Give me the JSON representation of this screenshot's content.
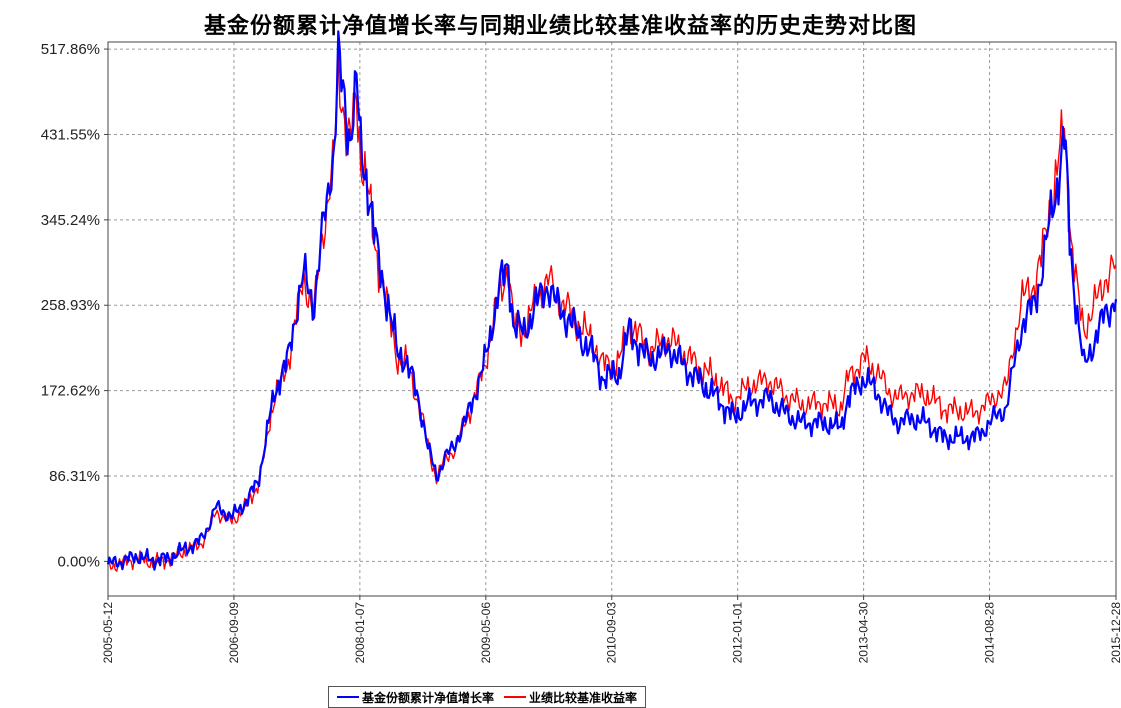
{
  "chart_data": {
    "type": "line",
    "title": "基金份额累计净值增长率与同期业绩比较基准收益率的历史走势对比图",
    "xlabel": "",
    "ylabel": "",
    "ylim": [
      -35,
      525
    ],
    "xlim": [
      "2005-05-12",
      "2015-12-28"
    ],
    "yticks": [
      "0.00%",
      "86.31%",
      "172.62%",
      "258.93%",
      "345.24%",
      "431.55%",
      "517.86%"
    ],
    "ytick_values": [
      0,
      86.31,
      172.62,
      258.93,
      345.24,
      431.55,
      517.86
    ],
    "xticks": [
      "2005-05-12",
      "2006-09-09",
      "2008-01-07",
      "2009-05-06",
      "2010-09-03",
      "2012-01-01",
      "2013-04-30",
      "2014-08-28",
      "2015-12-28"
    ],
    "grid": true,
    "legend_position": "bottom",
    "series": [
      {
        "name": "基金份额累计净值增长率",
        "color": "#0000ff",
        "x": [
          "2005-05-12",
          "2005-07-01",
          "2005-09-01",
          "2005-11-01",
          "2006-01-01",
          "2006-03-01",
          "2006-05-01",
          "2006-06-01",
          "2006-07-01",
          "2006-09-01",
          "2006-11-01",
          "2006-12-15",
          "2007-01-15",
          "2007-02-10",
          "2007-04-01",
          "2007-05-01",
          "2007-06-05",
          "2007-07-15",
          "2007-08-15",
          "2007-10-01",
          "2007-10-16",
          "2007-11-15",
          "2007-12-01",
          "2007-12-25",
          "2008-01-10",
          "2008-02-01",
          "2008-03-01",
          "2008-04-01",
          "2008-05-01",
          "2008-06-01",
          "2008-07-01",
          "2008-08-01",
          "2008-09-01",
          "2008-10-01",
          "2008-10-28",
          "2008-12-01",
          "2009-01-01",
          "2009-03-01",
          "2009-05-01",
          "2009-07-01",
          "2009-08-01",
          "2009-08-20",
          "2009-10-01",
          "2009-11-15",
          "2010-01-01",
          "2010-02-01",
          "2010-04-15",
          "2010-07-01",
          "2010-08-01",
          "2010-10-01",
          "2010-11-10",
          "2011-01-01",
          "2011-02-01",
          "2011-04-15",
          "2011-06-15",
          "2011-08-15",
          "2011-10-15",
          "2011-12-15",
          "2012-02-15",
          "2012-05-01",
          "2012-07-01",
          "2012-09-01",
          "2012-12-01",
          "2013-02-01",
          "2013-03-01",
          "2013-05-01",
          "2013-06-25",
          "2013-08-01",
          "2013-09-15",
          "2013-11-01",
          "2014-01-01",
          "2014-03-01",
          "2014-05-01",
          "2014-07-01",
          "2014-09-01",
          "2014-10-01",
          "2014-11-01",
          "2014-12-01",
          "2015-01-01",
          "2015-02-15",
          "2015-03-15",
          "2015-04-15",
          "2015-05-15",
          "2015-06-12",
          "2015-07-08",
          "2015-08-01",
          "2015-08-26",
          "2015-10-01",
          "2015-11-15",
          "2015-12-28"
        ],
        "values": [
          -3,
          0,
          5,
          1,
          3,
          12,
          20,
          35,
          55,
          45,
          62,
          85,
          130,
          170,
          200,
          245,
          290,
          260,
          330,
          420,
          505,
          450,
          430,
          480,
          420,
          390,
          330,
          290,
          250,
          210,
          205,
          180,
          150,
          110,
          85,
          105,
          115,
          150,
          200,
          280,
          300,
          240,
          230,
          260,
          280,
          260,
          235,
          205,
          185,
          190,
          235,
          210,
          205,
          215,
          195,
          180,
          165,
          145,
          160,
          165,
          150,
          140,
          140,
          135,
          165,
          185,
          170,
          150,
          140,
          145,
          140,
          125,
          125,
          125,
          140,
          150,
          155,
          200,
          240,
          260,
          290,
          340,
          380,
          430,
          310,
          250,
          195,
          220,
          250,
          265
        ]
      },
      {
        "name": "业绩比较基准收益率",
        "color": "#ff0000",
        "x": [
          "2005-05-12",
          "2005-07-01",
          "2005-09-01",
          "2005-11-01",
          "2006-01-01",
          "2006-03-01",
          "2006-05-01",
          "2006-06-01",
          "2006-07-01",
          "2006-09-01",
          "2006-11-01",
          "2006-12-15",
          "2007-01-15",
          "2007-02-10",
          "2007-04-01",
          "2007-05-01",
          "2007-06-05",
          "2007-07-15",
          "2007-08-15",
          "2007-10-01",
          "2007-10-16",
          "2007-11-15",
          "2007-12-01",
          "2007-12-25",
          "2008-01-10",
          "2008-02-01",
          "2008-03-01",
          "2008-04-01",
          "2008-05-01",
          "2008-06-01",
          "2008-07-01",
          "2008-08-01",
          "2008-09-01",
          "2008-10-01",
          "2008-10-28",
          "2008-12-01",
          "2009-01-01",
          "2009-03-01",
          "2009-05-01",
          "2009-07-01",
          "2009-08-01",
          "2009-08-20",
          "2009-10-01",
          "2009-11-15",
          "2010-01-01",
          "2010-02-01",
          "2010-04-15",
          "2010-07-01",
          "2010-08-01",
          "2010-10-01",
          "2010-11-10",
          "2011-01-01",
          "2011-02-01",
          "2011-04-15",
          "2011-06-15",
          "2011-08-15",
          "2011-10-15",
          "2011-12-15",
          "2012-02-15",
          "2012-05-01",
          "2012-07-01",
          "2012-09-01",
          "2012-12-01",
          "2013-02-01",
          "2013-03-01",
          "2013-05-01",
          "2013-06-25",
          "2013-08-01",
          "2013-09-15",
          "2013-11-01",
          "2014-01-01",
          "2014-03-01",
          "2014-05-01",
          "2014-07-01",
          "2014-09-01",
          "2014-10-01",
          "2014-11-01",
          "2014-12-01",
          "2015-01-01",
          "2015-02-15",
          "2015-03-15",
          "2015-04-15",
          "2015-05-15",
          "2015-06-12",
          "2015-07-08",
          "2015-08-01",
          "2015-08-26",
          "2015-10-01",
          "2015-11-15",
          "2015-12-28"
        ],
        "values": [
          -5,
          -2,
          3,
          -1,
          2,
          10,
          17,
          30,
          50,
          40,
          58,
          80,
          125,
          165,
          195,
          240,
          285,
          255,
          325,
          415,
          495,
          440,
          425,
          470,
          410,
          385,
          325,
          285,
          245,
          205,
          200,
          178,
          148,
          108,
          85,
          104,
          112,
          148,
          198,
          275,
          298,
          240,
          233,
          265,
          285,
          268,
          245,
          218,
          198,
          202,
          240,
          222,
          215,
          225,
          208,
          195,
          182,
          162,
          178,
          183,
          168,
          158,
          160,
          156,
          185,
          205,
          190,
          172,
          165,
          170,
          168,
          155,
          152,
          150,
          162,
          170,
          175,
          225,
          265,
          280,
          305,
          355,
          395,
          440,
          325,
          270,
          235,
          255,
          285,
          300
        ]
      }
    ]
  }
}
